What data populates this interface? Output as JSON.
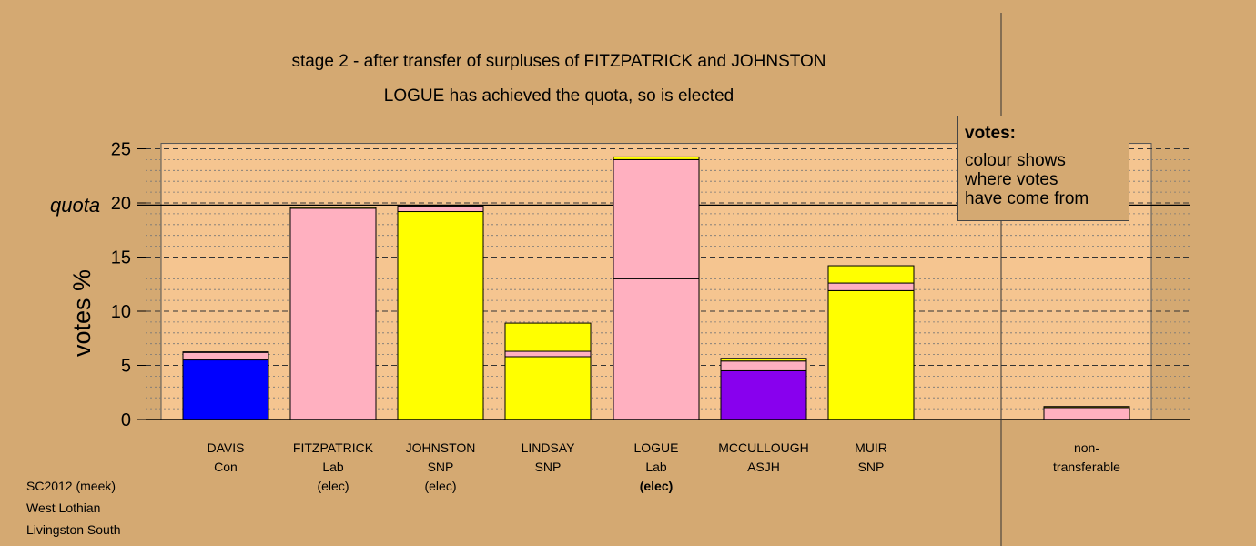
{
  "chart_data": {
    "type": "bar",
    "title": "stage 2 - after transfer of surpluses of FITZPATRICK and JOHNSTON",
    "subtitle": "LOGUE has achieved the quota, so is elected",
    "ylabel": "votes %",
    "ylim": [
      0,
      25.5
    ],
    "yticks": [
      0,
      5,
      10,
      15,
      20,
      25
    ],
    "quota": 19.8,
    "quota_label": "quota",
    "grid": true,
    "colors": {
      "Con": "#0000ff",
      "Lab": "#ffb0c0",
      "SNP": "#ffff00",
      "ASJH": "#8800ee",
      "nt": "#ffb0c0"
    },
    "candidates": [
      {
        "name": "DAVIS",
        "party": "Con",
        "note": "",
        "segments": [
          {
            "from": "Con",
            "value": 5.5
          },
          {
            "from": "Lab",
            "value": 0.7
          },
          {
            "from": "SNP",
            "value": 0.05
          }
        ]
      },
      {
        "name": "FITZPATRICK",
        "party": "Lab",
        "note": "(elec)",
        "segments": [
          {
            "from": "Lab",
            "value": 19.5
          },
          {
            "from": "SNP",
            "value": 0.1
          }
        ]
      },
      {
        "name": "JOHNSTON",
        "party": "SNP",
        "note": "(elec)",
        "segments": [
          {
            "from": "SNP",
            "value": 19.2
          },
          {
            "from": "Lab",
            "value": 0.5
          }
        ]
      },
      {
        "name": "LINDSAY",
        "party": "SNP",
        "note": "",
        "segments": [
          {
            "from": "SNP",
            "value": 5.8
          },
          {
            "from": "Lab",
            "value": 0.5
          },
          {
            "from": "SNP",
            "value": 2.6
          }
        ]
      },
      {
        "name": "LOGUE",
        "party": "Lab",
        "note": "(elec)",
        "elected_now": true,
        "segments": [
          {
            "from": "Lab",
            "value": 13.0
          },
          {
            "from": "Lab",
            "value": 11.0
          },
          {
            "from": "SNP",
            "value": 0.25
          }
        ]
      },
      {
        "name": "MCCULLOUGH",
        "party": "ASJH",
        "note": "",
        "segments": [
          {
            "from": "ASJH",
            "value": 4.5
          },
          {
            "from": "Lab",
            "value": 0.9
          },
          {
            "from": "SNP",
            "value": 0.25
          }
        ]
      },
      {
        "name": "MUIR",
        "party": "SNP",
        "note": "",
        "segments": [
          {
            "from": "SNP",
            "value": 11.9
          },
          {
            "from": "Lab",
            "value": 0.7
          },
          {
            "from": "SNP",
            "value": 1.6
          }
        ]
      }
    ],
    "nontransferable": {
      "label_line1": "non-",
      "label_line2": "transferable",
      "segments": [
        {
          "from": "nt",
          "value": 1.1
        },
        {
          "from": "SNP",
          "value": 0.1
        }
      ]
    }
  },
  "legend": {
    "title": "votes:",
    "lines": [
      "colour shows",
      "where votes",
      "have come from"
    ]
  },
  "footer": {
    "line1": "SC2012 (meek)",
    "line2": "West Lothian",
    "line3": "Livingston South"
  }
}
